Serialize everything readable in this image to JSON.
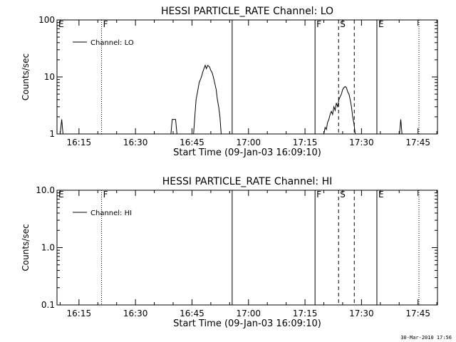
{
  "footer_timestamp": "30-Mar-2010 17:56",
  "chart_data": [
    {
      "type": "line",
      "title": "HESSI PARTICLE_RATE Channel: LO",
      "xlabel": "Start Time (09-Jan-03 16:09:10)",
      "ylabel": "Counts/sec",
      "yscale": "log",
      "ylim": [
        1,
        100
      ],
      "xlim": [
        "16:09:10",
        "17:50:10"
      ],
      "x_ticks": [
        "16:15",
        "16:30",
        "16:45",
        "17:00",
        "17:15",
        "17:30",
        "17:45"
      ],
      "y_ticks": [
        "1",
        "10",
        "100"
      ],
      "legend": {
        "label": "Channel: LO",
        "position": "top-left"
      },
      "markers": [
        {
          "label": "E",
          "time": "16:09:10",
          "style": "solid"
        },
        {
          "label": "F",
          "time": "16:21:00",
          "style": "dotted"
        },
        {
          "label": "",
          "time": "16:55:40",
          "style": "solid"
        },
        {
          "label": "F",
          "time": "17:17:40",
          "style": "solid"
        },
        {
          "label": "S",
          "time": "17:23:55",
          "style": "dashed"
        },
        {
          "label": "",
          "time": "17:28:05",
          "style": "dashed"
        },
        {
          "label": "E",
          "time": "17:34:05",
          "style": "solid"
        },
        {
          "label": "",
          "time": "17:45:15",
          "style": "dotted"
        }
      ],
      "series": [
        {
          "segments": [
            [
              [
                "16:10:00",
                1
              ],
              [
                "16:10:25",
                1.8
              ],
              [
                "16:10:45",
                1
              ]
            ],
            [
              [
                "16:39:25",
                1
              ],
              [
                "16:39:45",
                1.8
              ],
              [
                "16:40:40",
                1.8
              ],
              [
                "16:41:00",
                1
              ]
            ],
            [
              [
                "16:45:25",
                1
              ],
              [
                "16:45:45",
                2
              ],
              [
                "16:46:05",
                4
              ],
              [
                "16:46:35",
                6
              ],
              [
                "16:46:55",
                8
              ],
              [
                "16:47:30",
                10
              ],
              [
                "16:47:50",
                12
              ],
              [
                "16:48:10",
                14
              ],
              [
                "16:48:30",
                16
              ],
              [
                "16:48:50",
                14
              ],
              [
                "16:49:10",
                16
              ],
              [
                "16:49:40",
                15
              ],
              [
                "16:50:00",
                13
              ],
              [
                "16:50:20",
                12
              ],
              [
                "16:50:40",
                10
              ],
              [
                "16:51:00",
                8
              ],
              [
                "16:51:25",
                6
              ],
              [
                "16:51:45",
                4
              ],
              [
                "16:52:05",
                3
              ],
              [
                "16:52:25",
                2
              ],
              [
                "16:52:45",
                1
              ]
            ],
            [
              [
                "17:20:00",
                1
              ],
              [
                "17:20:20",
                1.3
              ],
              [
                "17:20:40",
                1.2
              ],
              [
                "17:21:00",
                1.6
              ],
              [
                "17:21:20",
                1.8
              ],
              [
                "17:21:40",
                2.2
              ],
              [
                "17:22:00",
                2.5
              ],
              [
                "17:22:20",
                2.2
              ],
              [
                "17:22:40",
                3
              ],
              [
                "17:23:00",
                2.6
              ],
              [
                "17:23:20",
                3.5
              ],
              [
                "17:23:40",
                3
              ],
              [
                "17:24:00",
                4
              ],
              [
                "17:24:20",
                4.5
              ],
              [
                "17:24:40",
                5
              ],
              [
                "17:25:00",
                6
              ],
              [
                "17:25:20",
                6.5
              ],
              [
                "17:25:40",
                6.8
              ],
              [
                "17:26:00",
                6.5
              ],
              [
                "17:26:20",
                5.5
              ],
              [
                "17:26:40",
                5
              ],
              [
                "17:27:00",
                4
              ],
              [
                "17:27:20",
                3
              ],
              [
                "17:27:40",
                2
              ],
              [
                "17:28:00",
                1.5
              ],
              [
                "17:28:20",
                1
              ]
            ],
            [
              [
                "17:40:05",
                1
              ],
              [
                "17:40:25",
                1.8
              ],
              [
                "17:40:45",
                1
              ]
            ]
          ]
        }
      ]
    },
    {
      "type": "line",
      "title": "HESSI PARTICLE_RATE Channel: HI",
      "xlabel": "Start Time (09-Jan-03 16:09:10)",
      "ylabel": "Counts/sec",
      "yscale": "log",
      "ylim": [
        0.1,
        10
      ],
      "xlim": [
        "16:09:10",
        "17:50:10"
      ],
      "x_ticks": [
        "16:15",
        "16:30",
        "16:45",
        "17:00",
        "17:15",
        "17:30",
        "17:45"
      ],
      "y_ticks": [
        "0.1",
        "1.0",
        "10.0"
      ],
      "legend": {
        "label": "Channel: HI",
        "position": "top-left"
      },
      "markers": [
        {
          "label": "E",
          "time": "16:09:10",
          "style": "solid"
        },
        {
          "label": "F",
          "time": "16:21:00",
          "style": "dotted"
        },
        {
          "label": "",
          "time": "16:55:40",
          "style": "solid"
        },
        {
          "label": "F",
          "time": "17:17:40",
          "style": "solid"
        },
        {
          "label": "S",
          "time": "17:23:55",
          "style": "dashed"
        },
        {
          "label": "",
          "time": "17:28:05",
          "style": "dashed"
        },
        {
          "label": "E",
          "time": "17:34:05",
          "style": "solid"
        },
        {
          "label": "",
          "time": "17:45:15",
          "style": "dotted"
        }
      ],
      "series": [
        {
          "segments": []
        }
      ]
    }
  ]
}
